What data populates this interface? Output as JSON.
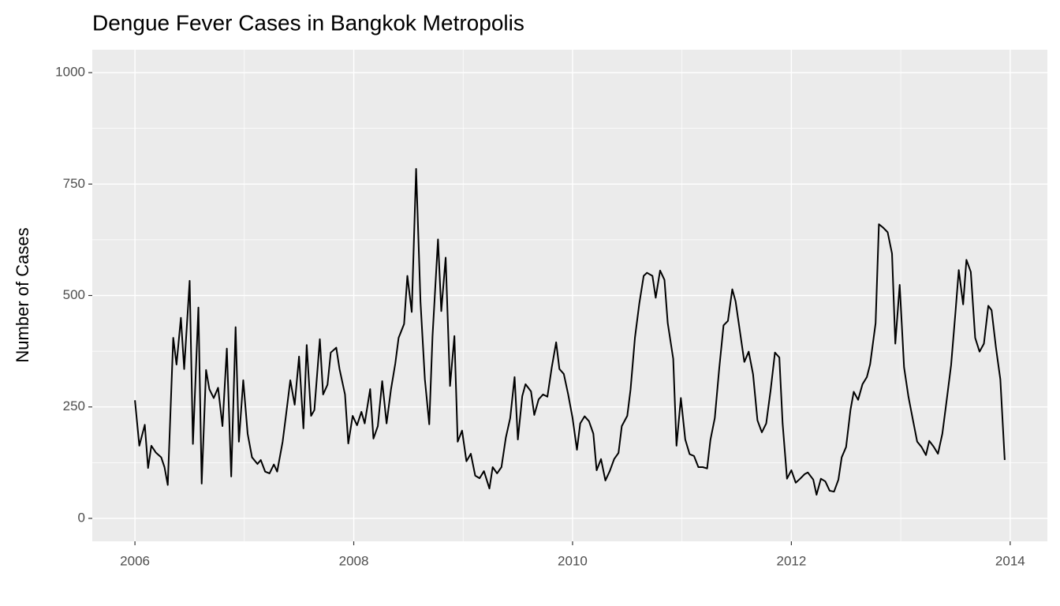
{
  "chart_data": {
    "type": "line",
    "title": "Dengue Fever Cases in Bangkok Metropolis",
    "y_label": "Number of Cases",
    "x": [
      2006.0,
      2006.04,
      2006.09,
      2006.12,
      2006.15,
      2006.19,
      2006.24,
      2006.27,
      2006.3,
      2006.35,
      2006.38,
      2006.42,
      2006.45,
      2006.5,
      2006.53,
      2006.58,
      2006.61,
      2006.65,
      2006.68,
      2006.72,
      2006.76,
      2006.8,
      2006.84,
      2006.88,
      2006.92,
      2006.95,
      2006.99,
      2007.03,
      2007.07,
      2007.12,
      2007.15,
      2007.19,
      2007.23,
      2007.27,
      2007.3,
      2007.35,
      2007.38,
      2007.42,
      2007.46,
      2007.5,
      2007.54,
      2007.57,
      2007.61,
      2007.64,
      2007.69,
      2007.72,
      2007.76,
      2007.79,
      2007.84,
      2007.87,
      2007.92,
      2007.95,
      2007.99,
      2008.03,
      2008.07,
      2008.1,
      2008.15,
      2008.18,
      2008.22,
      2008.26,
      2008.3,
      2008.34,
      2008.38,
      2008.41,
      2008.46,
      2008.49,
      2008.53,
      2008.57,
      2008.61,
      2008.65,
      2008.69,
      2008.72,
      2008.77,
      2008.8,
      2008.84,
      2008.88,
      2008.92,
      2008.95,
      2008.99,
      2009.03,
      2009.07,
      2009.11,
      2009.15,
      2009.19,
      2009.24,
      2009.27,
      2009.31,
      2009.35,
      2009.39,
      2009.43,
      2009.47,
      2009.5,
      2009.54,
      2009.57,
      2009.62,
      2009.65,
      2009.69,
      2009.73,
      2009.77,
      2009.81,
      2009.85,
      2009.88,
      2009.92,
      2009.96,
      2010.0,
      2010.04,
      2010.07,
      2010.11,
      2010.15,
      2010.19,
      2010.22,
      2010.26,
      2010.3,
      2010.34,
      2010.38,
      2010.42,
      2010.45,
      2010.5,
      2010.53,
      2010.57,
      2010.61,
      2010.65,
      2010.68,
      2010.73,
      2010.76,
      2010.8,
      2010.84,
      2010.87,
      2010.92,
      2010.95,
      2010.99,
      2011.03,
      2011.07,
      2011.11,
      2011.15,
      2011.19,
      2011.23,
      2011.26,
      2011.3,
      2011.34,
      2011.38,
      2011.42,
      2011.46,
      2011.49,
      2011.54,
      2011.57,
      2011.61,
      2011.65,
      2011.69,
      2011.73,
      2011.77,
      2011.81,
      2011.85,
      2011.89,
      2011.92,
      2011.96,
      2012.0,
      2012.04,
      2012.08,
      2012.12,
      2012.15,
      2012.2,
      2012.23,
      2012.27,
      2012.31,
      2012.35,
      2012.39,
      2012.43,
      2012.46,
      2012.5,
      2012.54,
      2012.57,
      2012.61,
      2012.65,
      2012.69,
      2012.72,
      2012.77,
      2012.8,
      2012.84,
      2012.88,
      2012.92,
      2012.95,
      2012.99,
      2013.03,
      2013.07,
      2013.11,
      2013.15,
      2013.19,
      2013.23,
      2013.26,
      2013.3,
      2013.34,
      2013.38,
      2013.42,
      2013.46,
      2013.5,
      2013.53,
      2013.57,
      2013.6,
      2013.64,
      2013.68,
      2013.72,
      2013.76,
      2013.8,
      2013.83,
      2013.87,
      2013.91,
      2013.95
    ],
    "values": [
      265,
      163,
      210,
      113,
      163,
      148,
      137,
      115,
      75,
      405,
      345,
      450,
      335,
      533,
      167,
      473,
      78,
      333,
      290,
      270,
      293,
      207,
      381,
      94,
      429,
      172,
      310,
      190,
      137,
      122,
      131,
      105,
      101,
      121,
      105,
      172,
      230,
      310,
      255,
      363,
      202,
      389,
      230,
      243,
      402,
      278,
      300,
      372,
      383,
      335,
      278,
      168,
      230,
      209,
      239,
      213,
      290,
      179,
      207,
      308,
      213,
      289,
      348,
      405,
      436,
      544,
      463,
      784,
      486,
      312,
      211,
      409,
      626,
      465,
      585,
      297,
      409,
      172,
      197,
      128,
      145,
      96,
      90,
      106,
      67,
      115,
      101,
      115,
      181,
      225,
      317,
      177,
      274,
      301,
      285,
      232,
      267,
      278,
      273,
      339,
      395,
      335,
      324,
      278,
      225,
      154,
      213,
      229,
      218,
      190,
      108,
      133,
      85,
      106,
      133,
      147,
      207,
      230,
      289,
      405,
      482,
      544,
      551,
      544,
      495,
      556,
      535,
      438,
      358,
      163,
      270,
      177,
      144,
      140,
      115,
      115,
      112,
      176,
      225,
      335,
      433,
      443,
      514,
      487,
      402,
      351,
      374,
      323,
      220,
      193,
      213,
      287,
      372,
      361,
      213,
      89,
      108,
      80,
      89,
      99,
      103,
      87,
      53,
      89,
      83,
      62,
      60,
      87,
      137,
      160,
      243,
      284,
      266,
      301,
      317,
      346,
      438,
      660,
      652,
      642,
      594,
      392,
      524,
      339,
      273,
      222,
      172,
      160,
      142,
      174,
      161,
      145,
      190,
      266,
      344,
      463,
      557,
      480,
      580,
      553,
      405,
      374,
      392,
      477,
      467,
      383,
      312,
      131
    ],
    "color": "#000000",
    "xlim": [
      2005.61,
      2014.34
    ],
    "ylim": [
      -51.4,
      1051.4
    ],
    "xticks": [
      2006,
      2008,
      2010,
      2012,
      2014
    ],
    "yticks": [
      0,
      250,
      500,
      750,
      1000
    ],
    "xminor_ticks": [
      2007,
      2009,
      2011,
      2013
    ],
    "yminor_ticks": [
      125,
      375,
      625,
      875
    ],
    "grid": true
  }
}
